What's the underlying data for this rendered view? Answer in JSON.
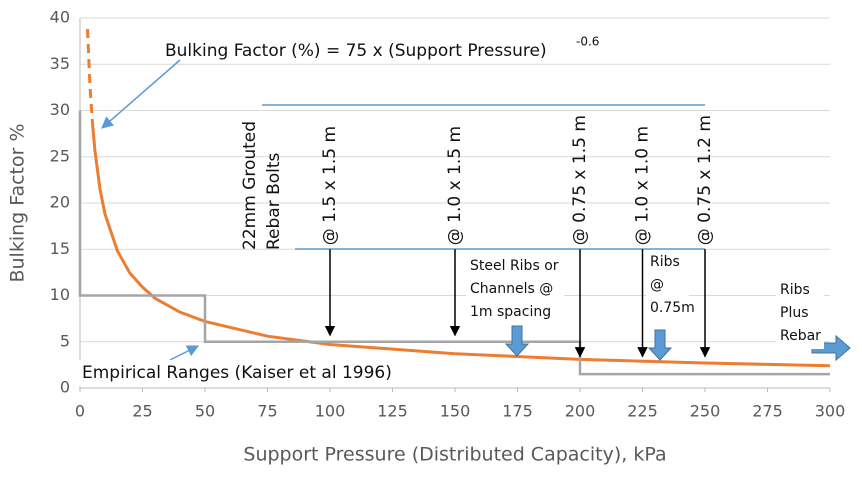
{
  "chart_data": {
    "type": "line",
    "x_label": "Support Pressure (Distributed Capacity), kPa",
    "y_label": "Bulking Factor %",
    "xlim": [
      0,
      300
    ],
    "xticks": [
      0,
      25,
      50,
      75,
      100,
      125,
      150,
      175,
      200,
      225,
      250,
      275,
      300
    ],
    "ylim": [
      0,
      40
    ],
    "yticks": [
      0,
      5,
      10,
      15,
      20,
      25,
      30,
      35,
      40
    ],
    "grid": true,
    "series": [
      {
        "color": "#ed7d31",
        "dashed": true,
        "x": [
          3,
          4,
          5
        ],
        "values": [
          38.8,
          32.6,
          28.6
        ]
      },
      {
        "color": "#ed7d31",
        "dashed": false,
        "x": [
          5,
          6,
          8,
          10,
          15,
          20,
          25,
          30,
          40,
          50,
          75,
          100,
          150,
          200,
          250,
          300
        ],
        "values": [
          28.6,
          25.6,
          21.5,
          18.8,
          14.8,
          12.4,
          10.9,
          9.7,
          8.2,
          7.2,
          5.6,
          4.7,
          3.7,
          3.1,
          2.7,
          2.4
        ]
      },
      {
        "color": "#a5a5a5",
        "dashed": false,
        "x": [
          0,
          0,
          50,
          50,
          200,
          200,
          300
        ],
        "values": [
          30,
          10,
          10,
          5,
          5,
          1.5,
          1.5
        ]
      }
    ],
    "equation": "Bulking Factor (%) = 75 x (Support Pressure)",
    "equation_exponent": "-0.6",
    "empirical_label": "Empirical Ranges (Kaiser et al 1996)",
    "bolt_label": [
      "22mm Grouted",
      "Rebar Bolts"
    ],
    "spacings": [
      {
        "x": 100,
        "label": "@ 1.5 x 1.5 m",
        "from": 15,
        "to": 5.7
      },
      {
        "x": 150,
        "label": "@ 1.0 x 1.5 m",
        "from": 15,
        "to": 5.7
      },
      {
        "x": 200,
        "label": "@ 0.75 x 1.5 m",
        "from": 15,
        "to": 3.4
      },
      {
        "x": 225,
        "label": "@ 1.0 x 1.0 m",
        "from": 15,
        "to": 3.4
      },
      {
        "x": 250,
        "label": "@ 0.75 x 1.2 m",
        "from": 15,
        "to": 3.4
      }
    ],
    "notes": [
      [
        "Steel Ribs or",
        "Channels @",
        "1m spacing"
      ],
      [
        "Ribs",
        "@",
        "0.75m"
      ],
      [
        "Ribs",
        "Plus",
        "Rebar"
      ]
    ]
  }
}
